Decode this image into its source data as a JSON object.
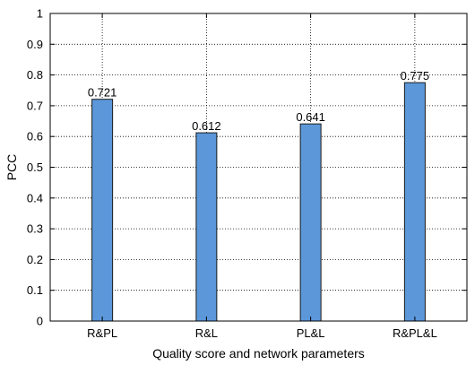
{
  "chart_data": {
    "type": "bar",
    "title": "",
    "xlabel": "Quality score and network parameters",
    "ylabel": "PCC",
    "categories": [
      "R&PL",
      "R&L",
      "PL&L",
      "R&PL&L"
    ],
    "values": [
      0.721,
      0.612,
      0.641,
      0.775
    ],
    "data_labels": [
      "0.721",
      "0.612",
      "0.641",
      "0.775"
    ],
    "ylim": [
      0,
      1
    ],
    "yticks": [
      0,
      0.1,
      0.2,
      0.3,
      0.4,
      0.5,
      0.6,
      0.7,
      0.8,
      0.9,
      1
    ],
    "ytick_labels": [
      "0",
      "0.1",
      "0.2",
      "0.3",
      "0.4",
      "0.5",
      "0.6",
      "0.7",
      "0.8",
      "0.9",
      "1"
    ],
    "grid": true,
    "grid_style": "dotted",
    "bar_color": "#5b97d9",
    "bar_edge_color": "#1a1a1a"
  }
}
